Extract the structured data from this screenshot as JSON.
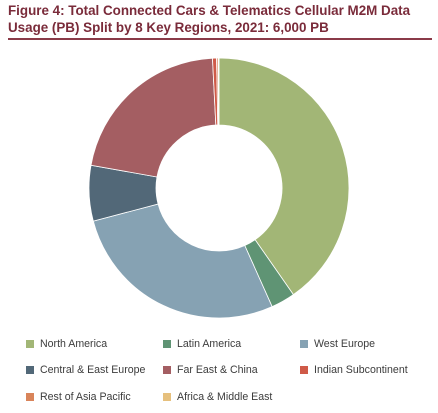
{
  "figure_title": "Figure 4: Total Connected Cars & Telematics Cellular M2M Data Usage (PB) Split by 8 Key Regions, 2021: 6,000 PB",
  "chart_data": {
    "type": "pie",
    "subtype": "donut",
    "title": "Figure 4: Total Connected Cars & Telematics Cellular M2M Data Usage (PB) Split by 8 Key Regions, 2021: 6,000 PB",
    "unit": "PB",
    "total": 6000,
    "categories": [
      "North America",
      "Latin America",
      "West Europe",
      "Central & East Europe",
      "Far East & China",
      "Indian Subcontinent",
      "Rest of Asia Pacific",
      "Africa & Middle East"
    ],
    "values": [
      2418,
      180,
      1656,
      414,
      1284,
      30,
      12,
      6
    ],
    "colors": [
      "#a2b676",
      "#5f9474",
      "#86a2b3",
      "#526878",
      "#a45e62",
      "#cf5a48",
      "#d9845a",
      "#e6c07d"
    ],
    "legend_position": "bottom"
  }
}
